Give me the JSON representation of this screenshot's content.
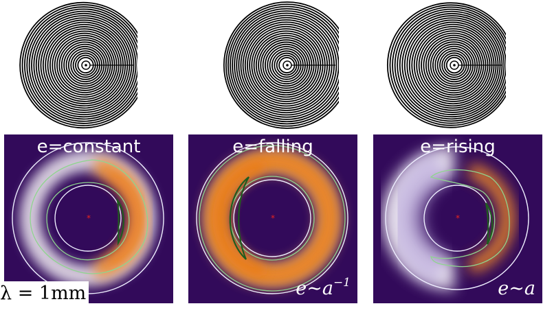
{
  "panels": [
    {
      "title": "e=constant",
      "formula_base": "",
      "formula_exp": "",
      "orbit": "constant"
    },
    {
      "title": "e=falling",
      "formula_base": "e∼a",
      "formula_exp": "−1",
      "orbit": "falling"
    },
    {
      "title": "e=rising",
      "formula_base": "e∼a",
      "formula_exp": "",
      "orbit": "rising"
    }
  ],
  "wavelength_label": "λ = 1mm",
  "colors": {
    "background": "#320a5a",
    "ring_light": "#b9a8dc",
    "ring_orange": "#f08a2a",
    "contour_outer": "#8fd48f",
    "contour_inner": "#1f5c1f",
    "star": "#e8231f"
  }
}
